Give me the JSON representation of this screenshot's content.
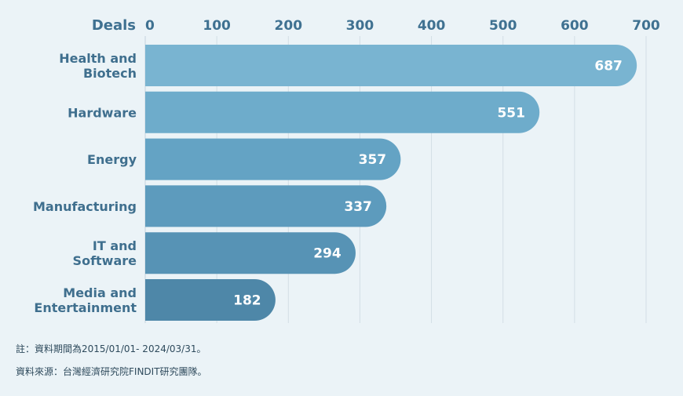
{
  "chart_data": {
    "type": "bar",
    "orientation": "horizontal",
    "xlabel": "Deals",
    "xlim": [
      0,
      700
    ],
    "ticks": [
      0,
      100,
      200,
      300,
      400,
      500,
      600,
      700
    ],
    "categories": [
      [
        "Health and",
        "Biotech"
      ],
      [
        "Hardware"
      ],
      [
        "Energy"
      ],
      [
        "Manufacturing"
      ],
      [
        "IT and",
        "Software"
      ],
      [
        "Media and",
        "Entertainment"
      ]
    ],
    "values": [
      687,
      551,
      357,
      337,
      294,
      182
    ],
    "colors": [
      "#79b4d1",
      "#6eaccb",
      "#64a3c4",
      "#5d9bbd",
      "#5793b5",
      "#4e87a8"
    ],
    "grid": true
  },
  "notes": {
    "note1": "註：資料期間為2015/01/01- 2024/03/31。",
    "note2": "資料來源：台灣經濟研究院FINDIT研究團隊。"
  }
}
